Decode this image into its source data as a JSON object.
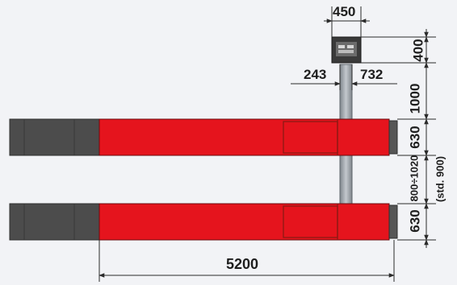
{
  "dimensions": {
    "console_width": "450",
    "console_height": "400",
    "left_offset": "243",
    "right_offset": "732",
    "column_gap": "1000",
    "platform_width_top": "630",
    "platform_gap": "800÷1020",
    "platform_gap_std": "(std. 900)",
    "platform_width_bottom": "630",
    "platform_length": "5200"
  },
  "colors": {
    "platform_red": "#e5141d",
    "ramp_grey": "#4c4c4c",
    "column_grey": "#9aa0a6",
    "dimension_line": "#2b2b2b",
    "background": "#f2f3f6"
  },
  "icons": {
    "control_console": "control-console-icon"
  }
}
